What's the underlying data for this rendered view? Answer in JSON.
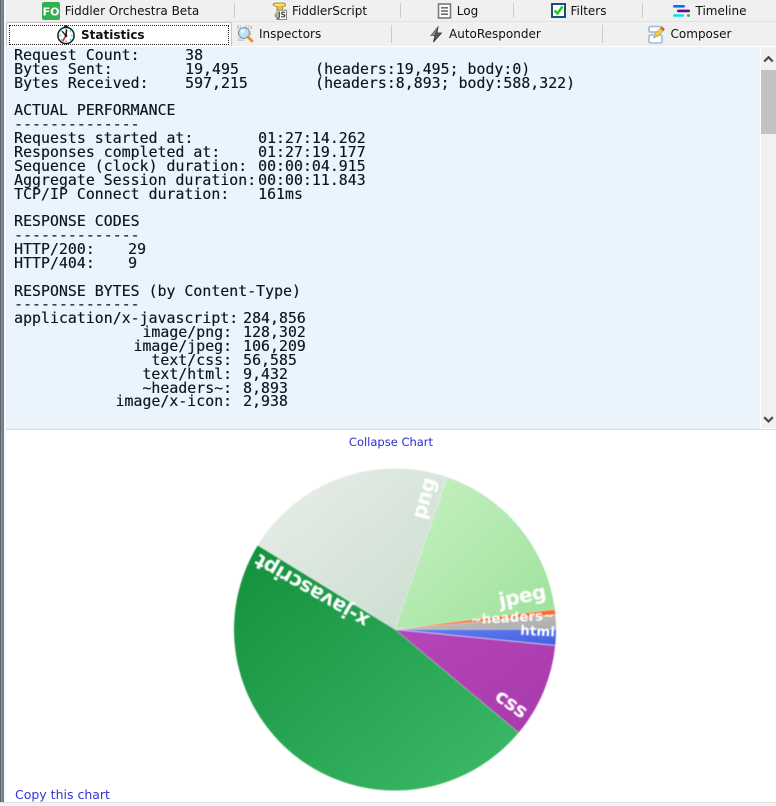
{
  "tabs_row1": [
    {
      "label": "Fiddler Orchestra Beta",
      "icon": "fiddler-orchestra"
    },
    {
      "label": "FiddlerScript",
      "icon": "fiddlerscript"
    },
    {
      "label": "Log",
      "icon": "log"
    },
    {
      "label": "Filters",
      "icon": "filters"
    },
    {
      "label": "Timeline",
      "icon": "timeline"
    }
  ],
  "tabs_row2": [
    {
      "label": "Statistics",
      "icon": "statistics",
      "selected": true
    },
    {
      "label": "Inspectors",
      "icon": "inspectors",
      "selected": false
    },
    {
      "label": "AutoResponder",
      "icon": "autoresponder",
      "selected": false
    },
    {
      "label": "Composer",
      "icon": "composer",
      "selected": false
    }
  ],
  "stats": {
    "summary": [
      {
        "label": "Request Count:",
        "value": "38",
        "extra": ""
      },
      {
        "label": "Bytes Sent:",
        "value": "19,495",
        "extra": "(headers:19,495; body:0)"
      },
      {
        "label": "Bytes Received:",
        "value": "597,215",
        "extra": "(headers:8,893; body:588,322)"
      }
    ],
    "performance": {
      "title": "ACTUAL PERFORMANCE",
      "underline": "--------------",
      "rows": [
        {
          "label": "Requests started at:",
          "value": "01:27:14.262"
        },
        {
          "label": "Responses completed at:",
          "value": "01:27:19.177"
        },
        {
          "label": "Sequence (clock) duration:",
          "value": "00:00:04.915"
        },
        {
          "label": "Aggregate Session duration:",
          "value": "00:00:11.843"
        },
        {
          "label": "TCP/IP Connect duration:",
          "value": "161ms"
        }
      ]
    },
    "response_codes": {
      "title": "RESPONSE CODES",
      "underline": "--------------",
      "rows": [
        {
          "label": "HTTP/200:",
          "value": "29"
        },
        {
          "label": "HTTP/404:",
          "value": "9"
        }
      ]
    },
    "response_bytes": {
      "title": "RESPONSE BYTES (by Content-Type)",
      "underline": "--------------",
      "rows": [
        {
          "label": "application/x-javascript:",
          "value": "284,856"
        },
        {
          "label": "image/png:",
          "value": "128,302"
        },
        {
          "label": "image/jpeg:",
          "value": "106,209"
        },
        {
          "label": "text/css:",
          "value": "56,585"
        },
        {
          "label": "text/html:",
          "value": "9,432"
        },
        {
          "label": "~headers~:",
          "value": "8,893"
        },
        {
          "label": "image/x-icon:",
          "value": "2,938"
        }
      ]
    }
  },
  "links": {
    "collapse_chart": "Collapse Chart",
    "copy_chart": "Copy this chart"
  },
  "chart_data": {
    "type": "pie",
    "title": "",
    "legend": "none",
    "start_angle": 148.5,
    "clockwise": true,
    "center": [
      395,
      628.5
    ],
    "radius": 161,
    "slices": [
      {
        "label": "png",
        "value": 128302,
        "color1": "#e8efe9",
        "color2": "#cbdcd0",
        "big": true,
        "show_label": true
      },
      {
        "label": "jpeg",
        "value": 106209,
        "color1": "#c9f1c3",
        "color2": "#9ce29b",
        "big": true,
        "show_label": true
      },
      {
        "label": "x-icon",
        "value": 2938,
        "color1": "#ff813a",
        "color2": "#ff5a1a",
        "big": false,
        "show_label": false
      },
      {
        "label": "~headers~",
        "value": 8893,
        "color1": "#c3c4c2",
        "color2": "#adaeac",
        "big": false,
        "show_label": true
      },
      {
        "label": "html",
        "value": 9432,
        "color1": "#657ff0",
        "color2": "#4160e0",
        "big": false,
        "show_label": true
      },
      {
        "label": "css",
        "value": 56585,
        "color1": "#b546bb",
        "color2": "#a83aab",
        "big": true,
        "show_label": true
      },
      {
        "label": "x-javascript",
        "value": 284856,
        "color1": "#14903d",
        "color2": "#3dbb68",
        "big": true,
        "show_label": true
      }
    ]
  }
}
